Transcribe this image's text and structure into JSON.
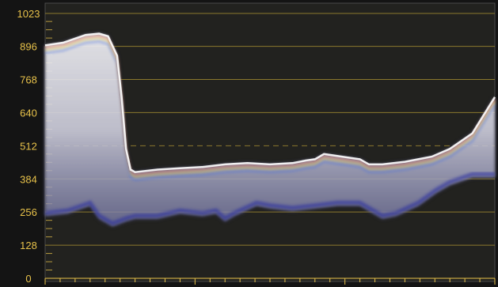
{
  "window": {
    "background": "#141414",
    "plot_background": "#22221f",
    "grid_color": "#8c7a2e",
    "label_color": "#e8c24a",
    "frame_color": "#4a4a4a"
  },
  "waveform": {
    "type": "waveform-scope",
    "y_scale": {
      "min": 0,
      "max": 1023,
      "labels": [
        "0",
        "128",
        "256",
        "384",
        "512",
        "640",
        "768",
        "896",
        "1023"
      ],
      "label_values": [
        0,
        128,
        256,
        384,
        512,
        640,
        768,
        896,
        1023
      ],
      "dashed_reference": 512
    },
    "x_scale": {
      "min": 0,
      "max": 1,
      "minor_ticks": 30,
      "major_tick_every": 10
    },
    "luma_trace_top": [
      [
        0.0,
        900
      ],
      [
        0.04,
        910
      ],
      [
        0.09,
        940
      ],
      [
        0.12,
        945
      ],
      [
        0.14,
        935
      ],
      [
        0.16,
        860
      ],
      [
        0.17,
        700
      ],
      [
        0.18,
        500
      ],
      [
        0.19,
        420
      ],
      [
        0.2,
        410
      ],
      [
        0.25,
        420
      ],
      [
        0.3,
        425
      ],
      [
        0.35,
        430
      ],
      [
        0.4,
        440
      ],
      [
        0.45,
        445
      ],
      [
        0.5,
        440
      ],
      [
        0.55,
        445
      ],
      [
        0.58,
        455
      ],
      [
        0.6,
        460
      ],
      [
        0.62,
        480
      ],
      [
        0.66,
        470
      ],
      [
        0.7,
        460
      ],
      [
        0.72,
        440
      ],
      [
        0.75,
        440
      ],
      [
        0.8,
        450
      ],
      [
        0.83,
        460
      ],
      [
        0.86,
        470
      ],
      [
        0.9,
        500
      ],
      [
        0.95,
        560
      ],
      [
        1.0,
        700
      ]
    ],
    "luma_trace_bottom": [
      [
        0.0,
        240
      ],
      [
        0.05,
        250
      ],
      [
        0.1,
        280
      ],
      [
        0.12,
        230
      ],
      [
        0.15,
        200
      ],
      [
        0.18,
        220
      ],
      [
        0.2,
        230
      ],
      [
        0.25,
        230
      ],
      [
        0.3,
        250
      ],
      [
        0.35,
        240
      ],
      [
        0.38,
        250
      ],
      [
        0.4,
        220
      ],
      [
        0.42,
        240
      ],
      [
        0.47,
        280
      ],
      [
        0.5,
        270
      ],
      [
        0.55,
        260
      ],
      [
        0.6,
        270
      ],
      [
        0.65,
        280
      ],
      [
        0.7,
        280
      ],
      [
        0.72,
        260
      ],
      [
        0.75,
        230
      ],
      [
        0.78,
        240
      ],
      [
        0.83,
        280
      ],
      [
        0.87,
        330
      ],
      [
        0.9,
        360
      ],
      [
        0.95,
        390
      ],
      [
        1.0,
        390
      ]
    ]
  }
}
